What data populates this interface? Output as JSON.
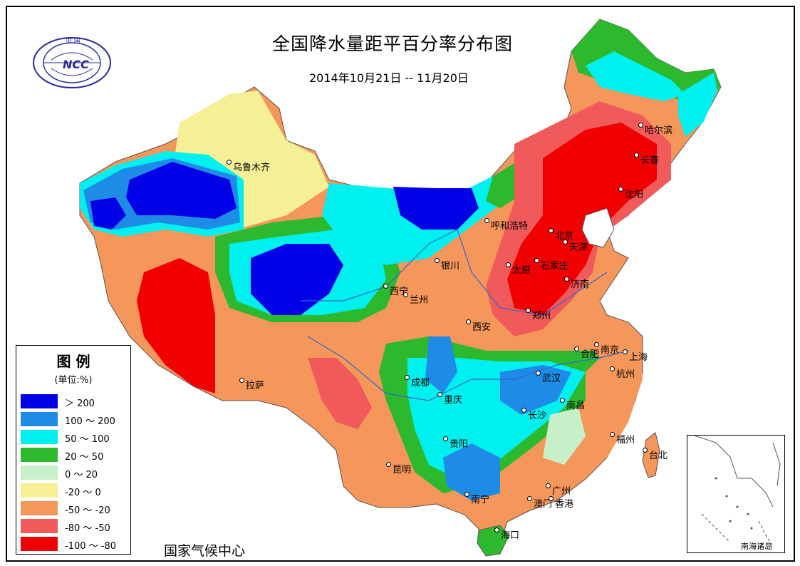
{
  "title": "全国降水量距平百分率分布图",
  "subtitle": "2014年10月21日 -- 11月20日",
  "logo": {
    "text_top": "中 国",
    "text_main": "NCC"
  },
  "source": "国家气候中心",
  "inset_label": "南海诸岛",
  "legend": {
    "title": "图  例",
    "unit": "(单位:%)",
    "items": [
      {
        "label": "＞ 200",
        "color": "#0000e6"
      },
      {
        "label": "100 ～ 200",
        "color": "#1e8ce6"
      },
      {
        "label": "50 ～ 100",
        "color": "#00f0f0"
      },
      {
        "label": "20 ～ 50",
        "color": "#2db92d"
      },
      {
        "label": "0 ～ 20",
        "color": "#c8f0c8"
      },
      {
        "label": "-20 ～ 0",
        "color": "#f5f096"
      },
      {
        "label": "-50 ～ -20",
        "color": "#f5965a"
      },
      {
        "label": "-80 ～ -50",
        "color": "#f05a5a"
      },
      {
        "label": "-100 ～ -80",
        "color": "#f00000"
      }
    ]
  },
  "cities": [
    {
      "name": "乌鲁木齐"
    },
    {
      "name": "哈尔滨"
    },
    {
      "name": "长春"
    },
    {
      "name": "沈阳"
    },
    {
      "name": "呼和浩特"
    },
    {
      "name": "北京"
    },
    {
      "name": "天津"
    },
    {
      "name": "银川"
    },
    {
      "name": "太原"
    },
    {
      "name": "石家庄"
    },
    {
      "name": "济南"
    },
    {
      "name": "西宁"
    },
    {
      "name": "兰州"
    },
    {
      "name": "郑州"
    },
    {
      "name": "西安"
    },
    {
      "name": "合肥"
    },
    {
      "name": "南京"
    },
    {
      "name": "上海"
    },
    {
      "name": "拉萨"
    },
    {
      "name": "成都"
    },
    {
      "name": "武汉"
    },
    {
      "name": "杭州"
    },
    {
      "name": "重庆"
    },
    {
      "name": "长沙"
    },
    {
      "name": "南昌"
    },
    {
      "name": "贵阳"
    },
    {
      "name": "福州"
    },
    {
      "name": "台北"
    },
    {
      "name": "昆明"
    },
    {
      "name": "广州"
    },
    {
      "name": "南宁"
    },
    {
      "name": "澳门"
    },
    {
      "name": "香港"
    },
    {
      "name": "海口"
    }
  ]
}
